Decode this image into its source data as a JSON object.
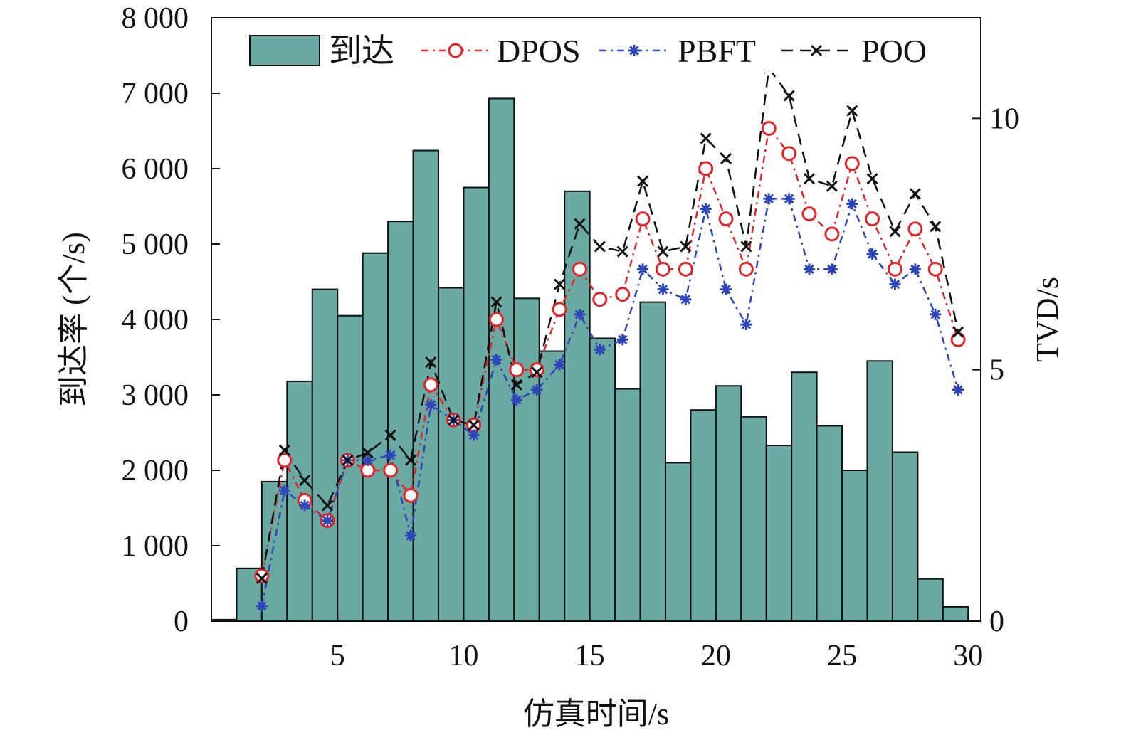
{
  "chart_data": {
    "type": "bar+line",
    "xlabel": "仿真时间/s",
    "ylabel_left": "到达率 (个/s)",
    "ylabel_right": "TVD/s",
    "xlim": [
      0,
      30.5
    ],
    "ylim_left": [
      0,
      8000
    ],
    "ylim_right": [
      0,
      12
    ],
    "x_ticks": [
      5,
      10,
      15,
      20,
      25,
      30
    ],
    "x_tick_labels": [
      "5",
      "10",
      "15",
      "20",
      "25",
      "30"
    ],
    "y_left_ticks": [
      0,
      1000,
      2000,
      3000,
      4000,
      5000,
      6000,
      7000,
      8000
    ],
    "y_left_tick_labels": [
      "0",
      "1 000",
      "2 000",
      "3 000",
      "4 000",
      "5 000",
      "6 000",
      "7 000",
      "8 000"
    ],
    "y_right_ticks": [
      0,
      5,
      10
    ],
    "y_right_tick_labels": [
      "0",
      "5",
      "10"
    ],
    "legend_position": "top",
    "bars": {
      "name": "到达",
      "color": "#6aaaa3",
      "bin_width": 1.0,
      "x": [
        0.5,
        1.5,
        2.5,
        3.5,
        4.5,
        5.5,
        6.5,
        7.5,
        8.5,
        9.5,
        10.5,
        11.5,
        12.5,
        13.5,
        14.5,
        15.5,
        16.5,
        17.5,
        18.5,
        19.5,
        20.5,
        21.5,
        22.5,
        23.5,
        24.5,
        25.5,
        26.5,
        27.5,
        28.5,
        29.5,
        30.5
      ],
      "values": [
        20,
        700,
        1850,
        3180,
        4400,
        4050,
        4880,
        5300,
        6240,
        4420,
        5750,
        6930,
        4280,
        3580,
        5700,
        3750,
        3080,
        4230,
        2100,
        2800,
        3120,
        2710,
        2330,
        3300,
        2590,
        2000,
        3450,
        2240,
        560,
        190,
        0
      ]
    },
    "series": [
      {
        "name": "DPOS",
        "color": "#e0262a",
        "marker": "circle",
        "x": [
          2.0,
          2.9,
          3.7,
          4.6,
          5.4,
          6.2,
          7.1,
          7.9,
          8.7,
          9.6,
          10.4,
          11.3,
          12.1,
          12.9,
          13.8,
          14.6,
          15.4,
          16.3,
          17.1,
          17.9,
          18.8,
          19.6,
          20.4,
          21.2,
          22.1,
          22.9,
          23.7,
          24.6,
          25.4,
          26.2,
          27.1,
          27.9,
          28.7,
          29.6
        ],
        "values": [
          0.9,
          3.2,
          2.4,
          2.0,
          3.2,
          3.0,
          3.0,
          2.5,
          4.7,
          4.0,
          3.9,
          6.0,
          5.0,
          5.0,
          6.2,
          7.0,
          6.4,
          6.5,
          8.0,
          7.0,
          7.0,
          9.0,
          8.0,
          7.0,
          9.8,
          9.3,
          8.1,
          7.7,
          9.1,
          8.0,
          7.0,
          7.8,
          7.0,
          5.6
        ]
      },
      {
        "name": "PBFT",
        "color": "#2c45b8",
        "marker": "asterisk",
        "x": [
          2.0,
          2.9,
          3.7,
          4.6,
          5.4,
          6.2,
          7.1,
          7.9,
          8.7,
          9.6,
          10.4,
          11.3,
          12.1,
          12.9,
          13.8,
          14.6,
          15.4,
          16.3,
          17.1,
          17.9,
          18.8,
          19.6,
          20.4,
          21.2,
          22.1,
          22.9,
          23.7,
          24.6,
          25.4,
          26.2,
          27.1,
          27.9,
          28.7,
          29.6
        ],
        "values": [
          0.3,
          2.6,
          2.3,
          2.0,
          3.2,
          3.2,
          3.3,
          1.7,
          4.3,
          4.0,
          3.7,
          5.2,
          4.4,
          4.6,
          5.1,
          6.1,
          5.4,
          5.6,
          7.0,
          6.6,
          6.4,
          8.2,
          6.6,
          5.9,
          8.4,
          8.4,
          7.0,
          7.0,
          8.3,
          7.3,
          6.7,
          7.0,
          6.1,
          4.6
        ]
      },
      {
        "name": "POO",
        "color": "#111111",
        "marker": "x",
        "x": [
          2.0,
          2.9,
          3.7,
          4.6,
          5.4,
          6.2,
          7.1,
          7.9,
          8.7,
          9.6,
          10.4,
          11.3,
          12.1,
          12.9,
          13.8,
          14.6,
          15.4,
          16.3,
          17.1,
          17.9,
          18.8,
          19.6,
          20.4,
          21.2,
          22.1,
          22.9,
          23.7,
          24.6,
          25.4,
          26.2,
          27.1,
          27.9,
          28.7,
          29.6
        ],
        "values": [
          0.85,
          3.4,
          2.8,
          2.3,
          3.2,
          3.35,
          3.7,
          3.2,
          5.15,
          4.0,
          3.9,
          6.35,
          4.7,
          4.95,
          6.7,
          7.9,
          7.45,
          7.35,
          8.75,
          7.35,
          7.45,
          9.6,
          9.2,
          7.45,
          11.0,
          10.45,
          8.8,
          8.65,
          10.15,
          8.8,
          7.75,
          8.5,
          7.85,
          5.75
        ]
      }
    ]
  }
}
